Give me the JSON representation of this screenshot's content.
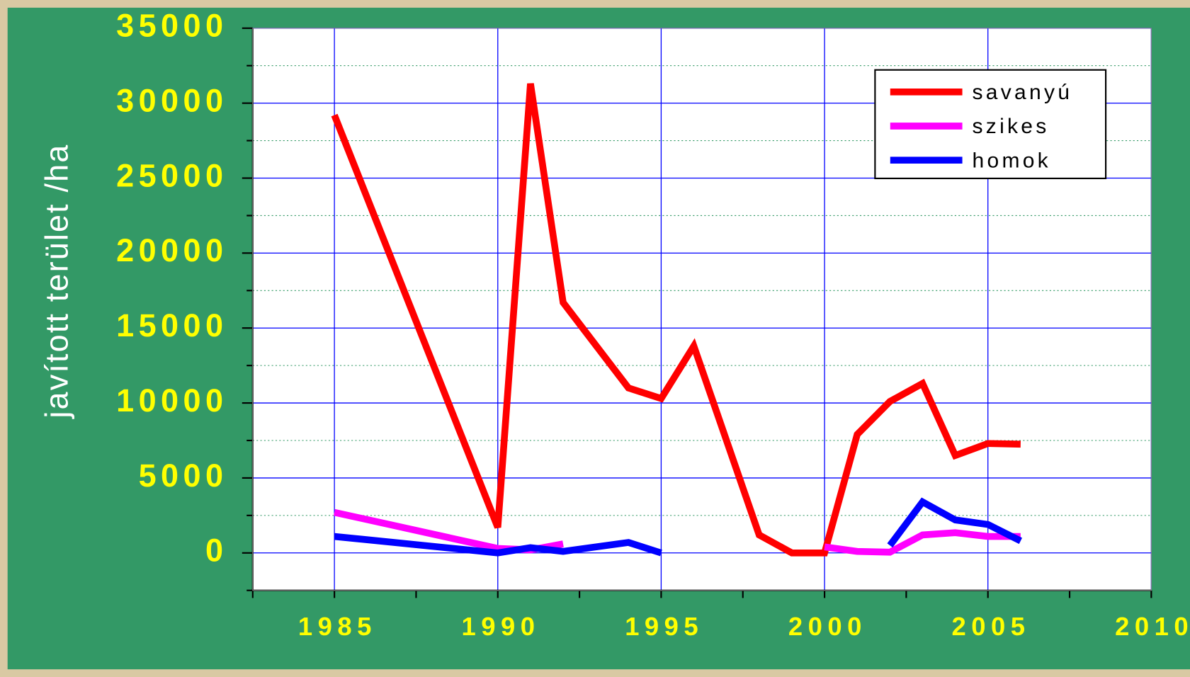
{
  "chart_data": {
    "type": "line",
    "y_label": "javított terület /ha",
    "series": [
      {
        "name": "savanyú",
        "color": "#ff0000",
        "x": [
          1985,
          1990,
          1991,
          1992,
          1994,
          1995,
          1996,
          1998,
          1999,
          2000,
          2001,
          2002,
          2003,
          2004,
          2005,
          2006
        ],
        "values": [
          29200,
          1700,
          31300,
          16700,
          11000,
          10300,
          13800,
          1200,
          0,
          0,
          7900,
          10100,
          11300,
          6500,
          7300,
          7250
        ]
      },
      {
        "name": "szikes",
        "color": "#ff00ff",
        "x": [
          1985,
          1990,
          1991,
          1992,
          1996,
          2000,
          2001,
          2002,
          2003,
          2004,
          2005,
          2006
        ],
        "values": [
          2700,
          300,
          200,
          600,
          null,
          400,
          100,
          50,
          1200,
          1350,
          1100,
          1100
        ]
      },
      {
        "name": "homok",
        "color": "#0000ff",
        "x": [
          1985,
          1990,
          1991,
          1992,
          1994,
          1995,
          1998,
          2002,
          2003,
          2004,
          2005,
          2006
        ],
        "values": [
          1100,
          0,
          350,
          100,
          700,
          0,
          null,
          500,
          3400,
          2200,
          1900,
          800
        ]
      }
    ],
    "xlim": [
      1982.5,
      2010
    ],
    "xticks": [
      1985,
      1990,
      1995,
      2000,
      2005,
      2010
    ],
    "xminorticks": [
      1982.5,
      1987.5,
      1992.5,
      1997.5,
      2002.5,
      2007.5
    ],
    "ylim": [
      -2500,
      35000
    ],
    "yticks": [
      0,
      5000,
      10000,
      15000,
      20000,
      25000,
      30000,
      35000
    ],
    "yminorticks": [
      -2500,
      2500,
      7500,
      12500,
      17500,
      22500,
      27500,
      32500
    ],
    "grid": true,
    "legend": "upper right"
  }
}
